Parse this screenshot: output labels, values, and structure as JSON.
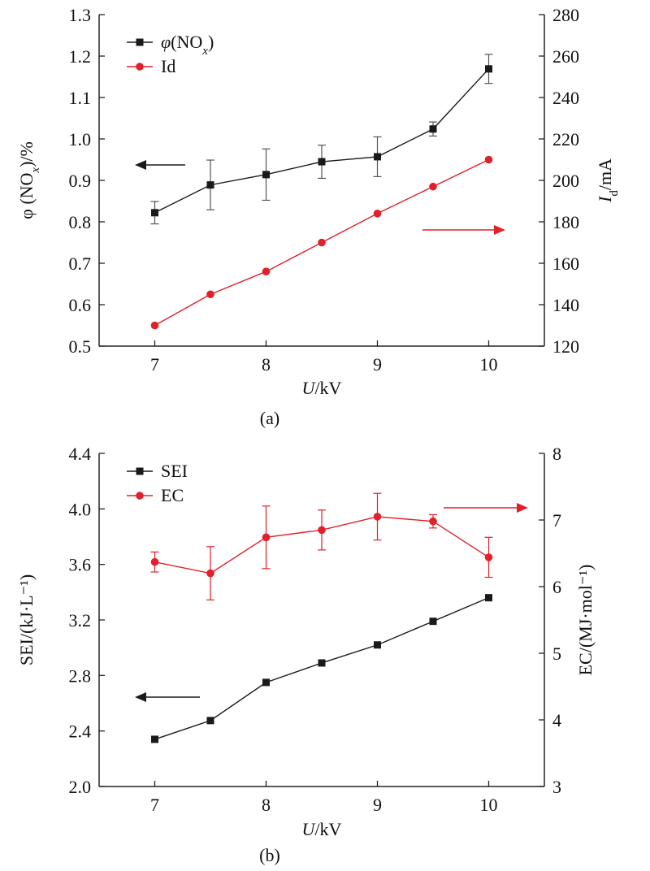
{
  "chart_data": [
    {
      "type": "line",
      "panel_label": "(a)",
      "x": [
        7,
        7.5,
        8,
        8.5,
        9,
        9.5,
        10
      ],
      "x_ticks": [
        7,
        8,
        9,
        10
      ],
      "xlim": [
        6.5,
        10.5
      ],
      "xlabel": {
        "italic": "U",
        "rest": "/kV"
      },
      "left_axis": {
        "ylim": [
          0.5,
          1.3
        ],
        "ticks": [
          "0.5",
          "0.6",
          "0.7",
          "0.8",
          "0.9",
          "1.0",
          "1.1",
          "1.2",
          "1.3"
        ],
        "label": "φ (NOx)/%"
      },
      "right_axis": {
        "ylim": [
          120,
          280
        ],
        "ticks": [
          "120",
          "140",
          "160",
          "180",
          "200",
          "220",
          "240",
          "260",
          "280"
        ],
        "label": "Id/mA"
      },
      "series": [
        {
          "name": "φ(NOx)",
          "axis": "left",
          "color": "#1a1a1a",
          "marker": "square",
          "values": [
            0.822,
            0.889,
            0.914,
            0.945,
            0.957,
            1.024,
            1.169
          ],
          "errors": [
            0.027,
            0.06,
            0.062,
            0.04,
            0.048,
            0.017,
            0.035
          ]
        },
        {
          "name": "Id",
          "axis": "right",
          "color": "#e0202a",
          "marker": "circle",
          "values": [
            130,
            145,
            156,
            170,
            184,
            197,
            210
          ]
        }
      ],
      "annotations": [
        {
          "kind": "arrow",
          "direction": "left",
          "color": "#1a1a1a",
          "meaning": "left axis"
        },
        {
          "kind": "arrow",
          "direction": "right",
          "color": "#e0202a",
          "meaning": "right axis"
        }
      ],
      "legend_position": "top-left",
      "grid": false
    },
    {
      "type": "line",
      "panel_label": "(b)",
      "x": [
        7,
        7.5,
        8,
        8.5,
        9,
        9.5,
        10
      ],
      "x_ticks": [
        7,
        8,
        9,
        10
      ],
      "xlim": [
        6.5,
        10.5
      ],
      "xlabel": {
        "italic": "U",
        "rest": "/kV"
      },
      "left_axis": {
        "ylim": [
          2.0,
          4.4
        ],
        "ticks": [
          "2.0",
          "2.4",
          "2.8",
          "3.2",
          "3.6",
          "4.0",
          "4.4"
        ],
        "label": "SEI/(kJ·L⁻¹)"
      },
      "right_axis": {
        "ylim": [
          3,
          8
        ],
        "ticks": [
          "3",
          "4",
          "5",
          "6",
          "7",
          "8"
        ],
        "label": "EC/(MJ·mol⁻¹)"
      },
      "series": [
        {
          "name": "SEI",
          "axis": "left",
          "color": "#1a1a1a",
          "marker": "square",
          "values": [
            2.34,
            2.475,
            2.75,
            2.89,
            3.02,
            3.19,
            3.36
          ]
        },
        {
          "name": "EC",
          "axis": "right",
          "color": "#e0202a",
          "marker": "circle",
          "values": [
            6.37,
            6.2,
            6.74,
            6.85,
            7.05,
            6.98,
            6.44
          ],
          "errors": [
            0.15,
            0.4,
            0.47,
            0.3,
            0.35,
            0.1,
            0.3
          ]
        }
      ],
      "annotations": [
        {
          "kind": "arrow",
          "direction": "left",
          "color": "#1a1a1a",
          "meaning": "left axis"
        },
        {
          "kind": "arrow",
          "direction": "right",
          "color": "#e0202a",
          "meaning": "right axis"
        }
      ],
      "legend_position": "top-left",
      "grid": false
    }
  ]
}
